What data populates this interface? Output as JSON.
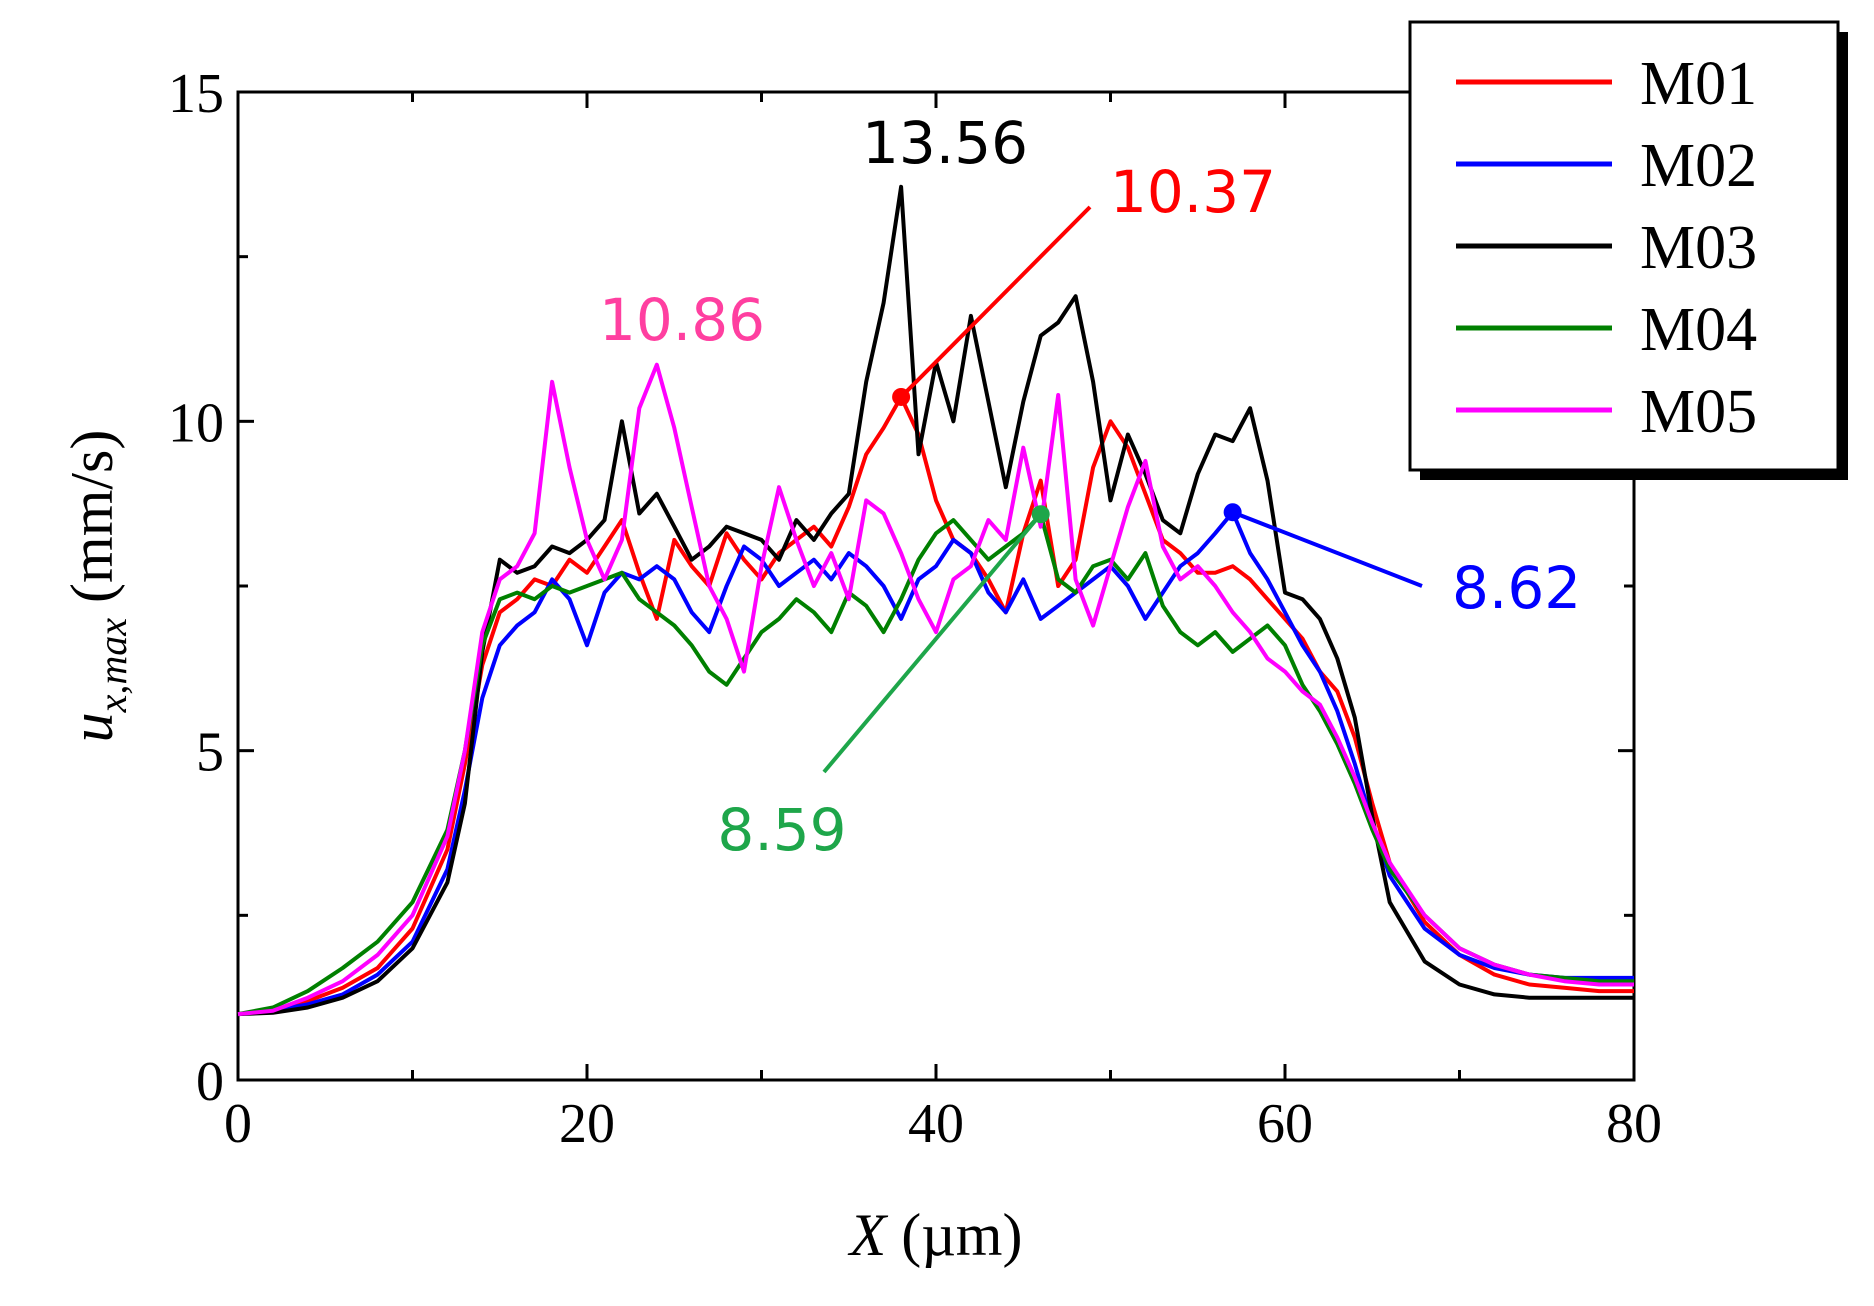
{
  "chart_data": {
    "type": "line",
    "title": "",
    "xlabel": {
      "symbol": "X",
      "unit": "(µm)"
    },
    "ylabel": {
      "base": "u",
      "subscript": "x,max",
      "unit": "(mm/s)"
    },
    "xlim": [
      0,
      80
    ],
    "ylim": [
      0,
      15
    ],
    "xticks": [
      0,
      20,
      40,
      60,
      80
    ],
    "yticks": [
      0,
      5,
      10,
      15
    ],
    "grid": false,
    "legend_position": "top-right",
    "series": [
      {
        "name": "M01",
        "color": "#ff0000",
        "x": [
          0,
          2,
          4,
          6,
          8,
          10,
          12,
          13,
          14,
          15,
          16,
          17,
          18,
          19,
          20,
          21,
          22,
          23,
          24,
          25,
          26,
          27,
          28,
          29,
          30,
          31,
          32,
          33,
          34,
          35,
          36,
          37,
          38,
          39,
          40,
          41,
          42,
          43,
          44,
          45,
          46,
          47,
          48,
          49,
          50,
          51,
          52,
          53,
          54,
          55,
          56,
          57,
          58,
          59,
          60,
          61,
          62,
          63,
          64,
          65,
          66,
          68,
          70,
          72,
          74,
          76,
          78,
          80
        ],
        "y": [
          1.0,
          1.05,
          1.2,
          1.4,
          1.7,
          2.3,
          3.5,
          4.8,
          6.3,
          7.1,
          7.3,
          7.6,
          7.5,
          7.9,
          7.7,
          8.1,
          8.5,
          7.7,
          7.0,
          8.2,
          7.8,
          7.5,
          8.3,
          7.9,
          7.6,
          8.0,
          8.2,
          8.4,
          8.1,
          8.7,
          9.5,
          9.9,
          10.37,
          9.8,
          8.8,
          8.2,
          8.0,
          7.6,
          7.1,
          8.3,
          9.1,
          7.5,
          7.9,
          9.3,
          10.0,
          9.6,
          8.9,
          8.2,
          8.0,
          7.7,
          7.7,
          7.8,
          7.6,
          7.3,
          7.0,
          6.7,
          6.2,
          5.9,
          5.2,
          4.2,
          3.3,
          2.4,
          1.9,
          1.6,
          1.45,
          1.4,
          1.35,
          1.35
        ]
      },
      {
        "name": "M02",
        "color": "#0000ff",
        "x": [
          0,
          2,
          4,
          6,
          8,
          10,
          12,
          13,
          14,
          15,
          16,
          17,
          18,
          19,
          20,
          21,
          22,
          23,
          24,
          25,
          26,
          27,
          28,
          29,
          30,
          31,
          32,
          33,
          34,
          35,
          36,
          37,
          38,
          39,
          40,
          41,
          42,
          43,
          44,
          45,
          46,
          47,
          48,
          49,
          50,
          51,
          52,
          53,
          54,
          55,
          56,
          57,
          58,
          59,
          60,
          61,
          62,
          63,
          64,
          65,
          66,
          68,
          70,
          72,
          74,
          76,
          78,
          80
        ],
        "y": [
          1.0,
          1.05,
          1.15,
          1.3,
          1.6,
          2.1,
          3.2,
          4.4,
          5.8,
          6.6,
          6.9,
          7.1,
          7.6,
          7.3,
          6.6,
          7.4,
          7.7,
          7.6,
          7.8,
          7.6,
          7.1,
          6.8,
          7.5,
          8.1,
          7.9,
          7.5,
          7.7,
          7.9,
          7.6,
          8.0,
          7.8,
          7.5,
          7.0,
          7.6,
          7.8,
          8.2,
          8.0,
          7.4,
          7.1,
          7.6,
          7.0,
          7.2,
          7.4,
          7.6,
          7.8,
          7.5,
          7.0,
          7.4,
          7.8,
          8.0,
          8.3,
          8.62,
          8.0,
          7.6,
          7.1,
          6.6,
          6.2,
          5.6,
          4.8,
          3.9,
          3.1,
          2.3,
          1.9,
          1.7,
          1.6,
          1.55,
          1.55,
          1.55
        ]
      },
      {
        "name": "M03",
        "color": "#000000",
        "x": [
          0,
          2,
          4,
          6,
          8,
          10,
          12,
          13,
          14,
          15,
          16,
          17,
          18,
          19,
          20,
          21,
          22,
          23,
          24,
          25,
          26,
          27,
          28,
          29,
          30,
          31,
          32,
          33,
          34,
          35,
          36,
          37,
          38,
          39,
          40,
          41,
          42,
          43,
          44,
          45,
          46,
          47,
          48,
          49,
          50,
          51,
          52,
          53,
          54,
          55,
          56,
          57,
          58,
          59,
          60,
          61,
          62,
          63,
          64,
          65,
          66,
          68,
          70,
          72,
          74,
          76,
          78,
          80
        ],
        "y": [
          1.0,
          1.02,
          1.1,
          1.25,
          1.5,
          2.0,
          3.0,
          4.2,
          6.5,
          7.9,
          7.7,
          7.8,
          8.1,
          8.0,
          8.2,
          8.5,
          10.0,
          8.6,
          8.9,
          8.4,
          7.9,
          8.1,
          8.4,
          8.3,
          8.2,
          7.9,
          8.5,
          8.2,
          8.6,
          8.9,
          10.6,
          11.8,
          13.56,
          9.5,
          10.9,
          10.0,
          11.6,
          10.3,
          9.0,
          10.3,
          11.3,
          11.5,
          11.9,
          10.6,
          8.8,
          9.8,
          9.2,
          8.5,
          8.3,
          9.2,
          9.8,
          9.7,
          10.2,
          9.1,
          7.4,
          7.3,
          7.0,
          6.4,
          5.5,
          4.0,
          2.7,
          1.8,
          1.45,
          1.3,
          1.25,
          1.25,
          1.25,
          1.25
        ]
      },
      {
        "name": "M04",
        "color": "#008000",
        "x": [
          0,
          2,
          4,
          6,
          8,
          10,
          12,
          13,
          14,
          15,
          16,
          17,
          18,
          19,
          20,
          21,
          22,
          23,
          24,
          25,
          26,
          27,
          28,
          29,
          30,
          31,
          32,
          33,
          34,
          35,
          36,
          37,
          38,
          39,
          40,
          41,
          42,
          43,
          44,
          45,
          46,
          47,
          48,
          49,
          50,
          51,
          52,
          53,
          54,
          55,
          56,
          57,
          58,
          59,
          60,
          61,
          62,
          63,
          64,
          65,
          66,
          68,
          70,
          72,
          74,
          76,
          78,
          80
        ],
        "y": [
          1.0,
          1.1,
          1.35,
          1.7,
          2.1,
          2.7,
          3.8,
          5.0,
          6.6,
          7.3,
          7.4,
          7.3,
          7.5,
          7.4,
          7.5,
          7.6,
          7.7,
          7.3,
          7.1,
          6.9,
          6.6,
          6.2,
          6.0,
          6.4,
          6.8,
          7.0,
          7.3,
          7.1,
          6.8,
          7.4,
          7.2,
          6.8,
          7.3,
          7.9,
          8.3,
          8.5,
          8.2,
          7.9,
          8.1,
          8.3,
          8.59,
          7.6,
          7.4,
          7.8,
          7.9,
          7.6,
          8.0,
          7.2,
          6.8,
          6.6,
          6.8,
          6.5,
          6.7,
          6.9,
          6.6,
          6.0,
          5.6,
          5.1,
          4.5,
          3.8,
          3.2,
          2.5,
          2.0,
          1.75,
          1.6,
          1.55,
          1.5,
          1.5
        ]
      },
      {
        "name": "M05",
        "color": "#ff00ff",
        "x": [
          0,
          2,
          4,
          6,
          8,
          10,
          12,
          13,
          14,
          15,
          16,
          17,
          18,
          19,
          20,
          21,
          22,
          23,
          24,
          25,
          26,
          27,
          28,
          29,
          30,
          31,
          32,
          33,
          34,
          35,
          36,
          37,
          38,
          39,
          40,
          41,
          42,
          43,
          44,
          45,
          46,
          47,
          48,
          49,
          50,
          51,
          52,
          53,
          54,
          55,
          56,
          57,
          58,
          59,
          60,
          61,
          62,
          63,
          64,
          65,
          66,
          68,
          70,
          72,
          74,
          76,
          78,
          80
        ],
        "y": [
          1.0,
          1.05,
          1.25,
          1.5,
          1.9,
          2.5,
          3.7,
          5.0,
          6.8,
          7.6,
          7.8,
          8.3,
          10.6,
          9.3,
          8.2,
          7.6,
          8.2,
          10.2,
          10.86,
          9.9,
          8.7,
          7.5,
          7.0,
          6.2,
          7.8,
          9.0,
          8.2,
          7.5,
          8.0,
          7.3,
          8.8,
          8.6,
          8.0,
          7.3,
          6.8,
          7.6,
          7.8,
          8.5,
          8.2,
          9.6,
          8.4,
          10.4,
          7.6,
          6.9,
          7.8,
          8.7,
          9.4,
          8.1,
          7.6,
          7.8,
          7.5,
          7.1,
          6.8,
          6.4,
          6.2,
          5.9,
          5.7,
          5.2,
          4.6,
          3.9,
          3.3,
          2.5,
          2.0,
          1.75,
          1.6,
          1.5,
          1.45,
          1.45
        ]
      }
    ],
    "annotations": [
      {
        "text": "13.56",
        "series": "M03",
        "x": 38,
        "y": 13.56,
        "color": "#000000",
        "leader": false
      },
      {
        "text": "10.37",
        "series": "M01",
        "x": 38,
        "y": 10.37,
        "color": "#ff0000",
        "leader": true
      },
      {
        "text": "10.86",
        "series": "M05",
        "x": 24.5,
        "y": 10.86,
        "color": "#ff3fa0",
        "leader": false
      },
      {
        "text": "8.59",
        "series": "M04",
        "x": 46,
        "y": 8.59,
        "color": "#1ea64a",
        "leader": true
      },
      {
        "text": "8.62",
        "series": "M02",
        "x": 57,
        "y": 8.62,
        "color": "#0000ff",
        "leader": true
      }
    ]
  }
}
